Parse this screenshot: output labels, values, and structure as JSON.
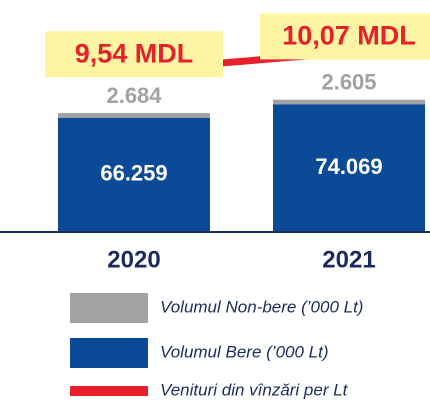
{
  "chart_data": {
    "type": "bar",
    "stacked": true,
    "categories": [
      "2020",
      "2021"
    ],
    "ylim": [
      0,
      80000
    ],
    "y2lim": [
      7,
      11
    ],
    "series": [
      {
        "name": "Volumul Non-bere (’000 Lt)",
        "color": "#a2a2a2",
        "values": [
          2684,
          2605
        ],
        "value_labels": [
          "2.684",
          "2.605"
        ]
      },
      {
        "name": "Volumul Bere (’000 Lt)",
        "color": "#0b4a96",
        "values": [
          66259,
          74069
        ],
        "value_labels": [
          "66.259",
          "74.069"
        ]
      },
      {
        "name": "Venituri din vînzări per Lt",
        "type": "line",
        "axis": "y2",
        "color": "#e8202a",
        "values": [
          9.54,
          10.07
        ],
        "value_labels": [
          "9,54 MDL",
          "10,07 MDL"
        ]
      }
    ]
  }
}
